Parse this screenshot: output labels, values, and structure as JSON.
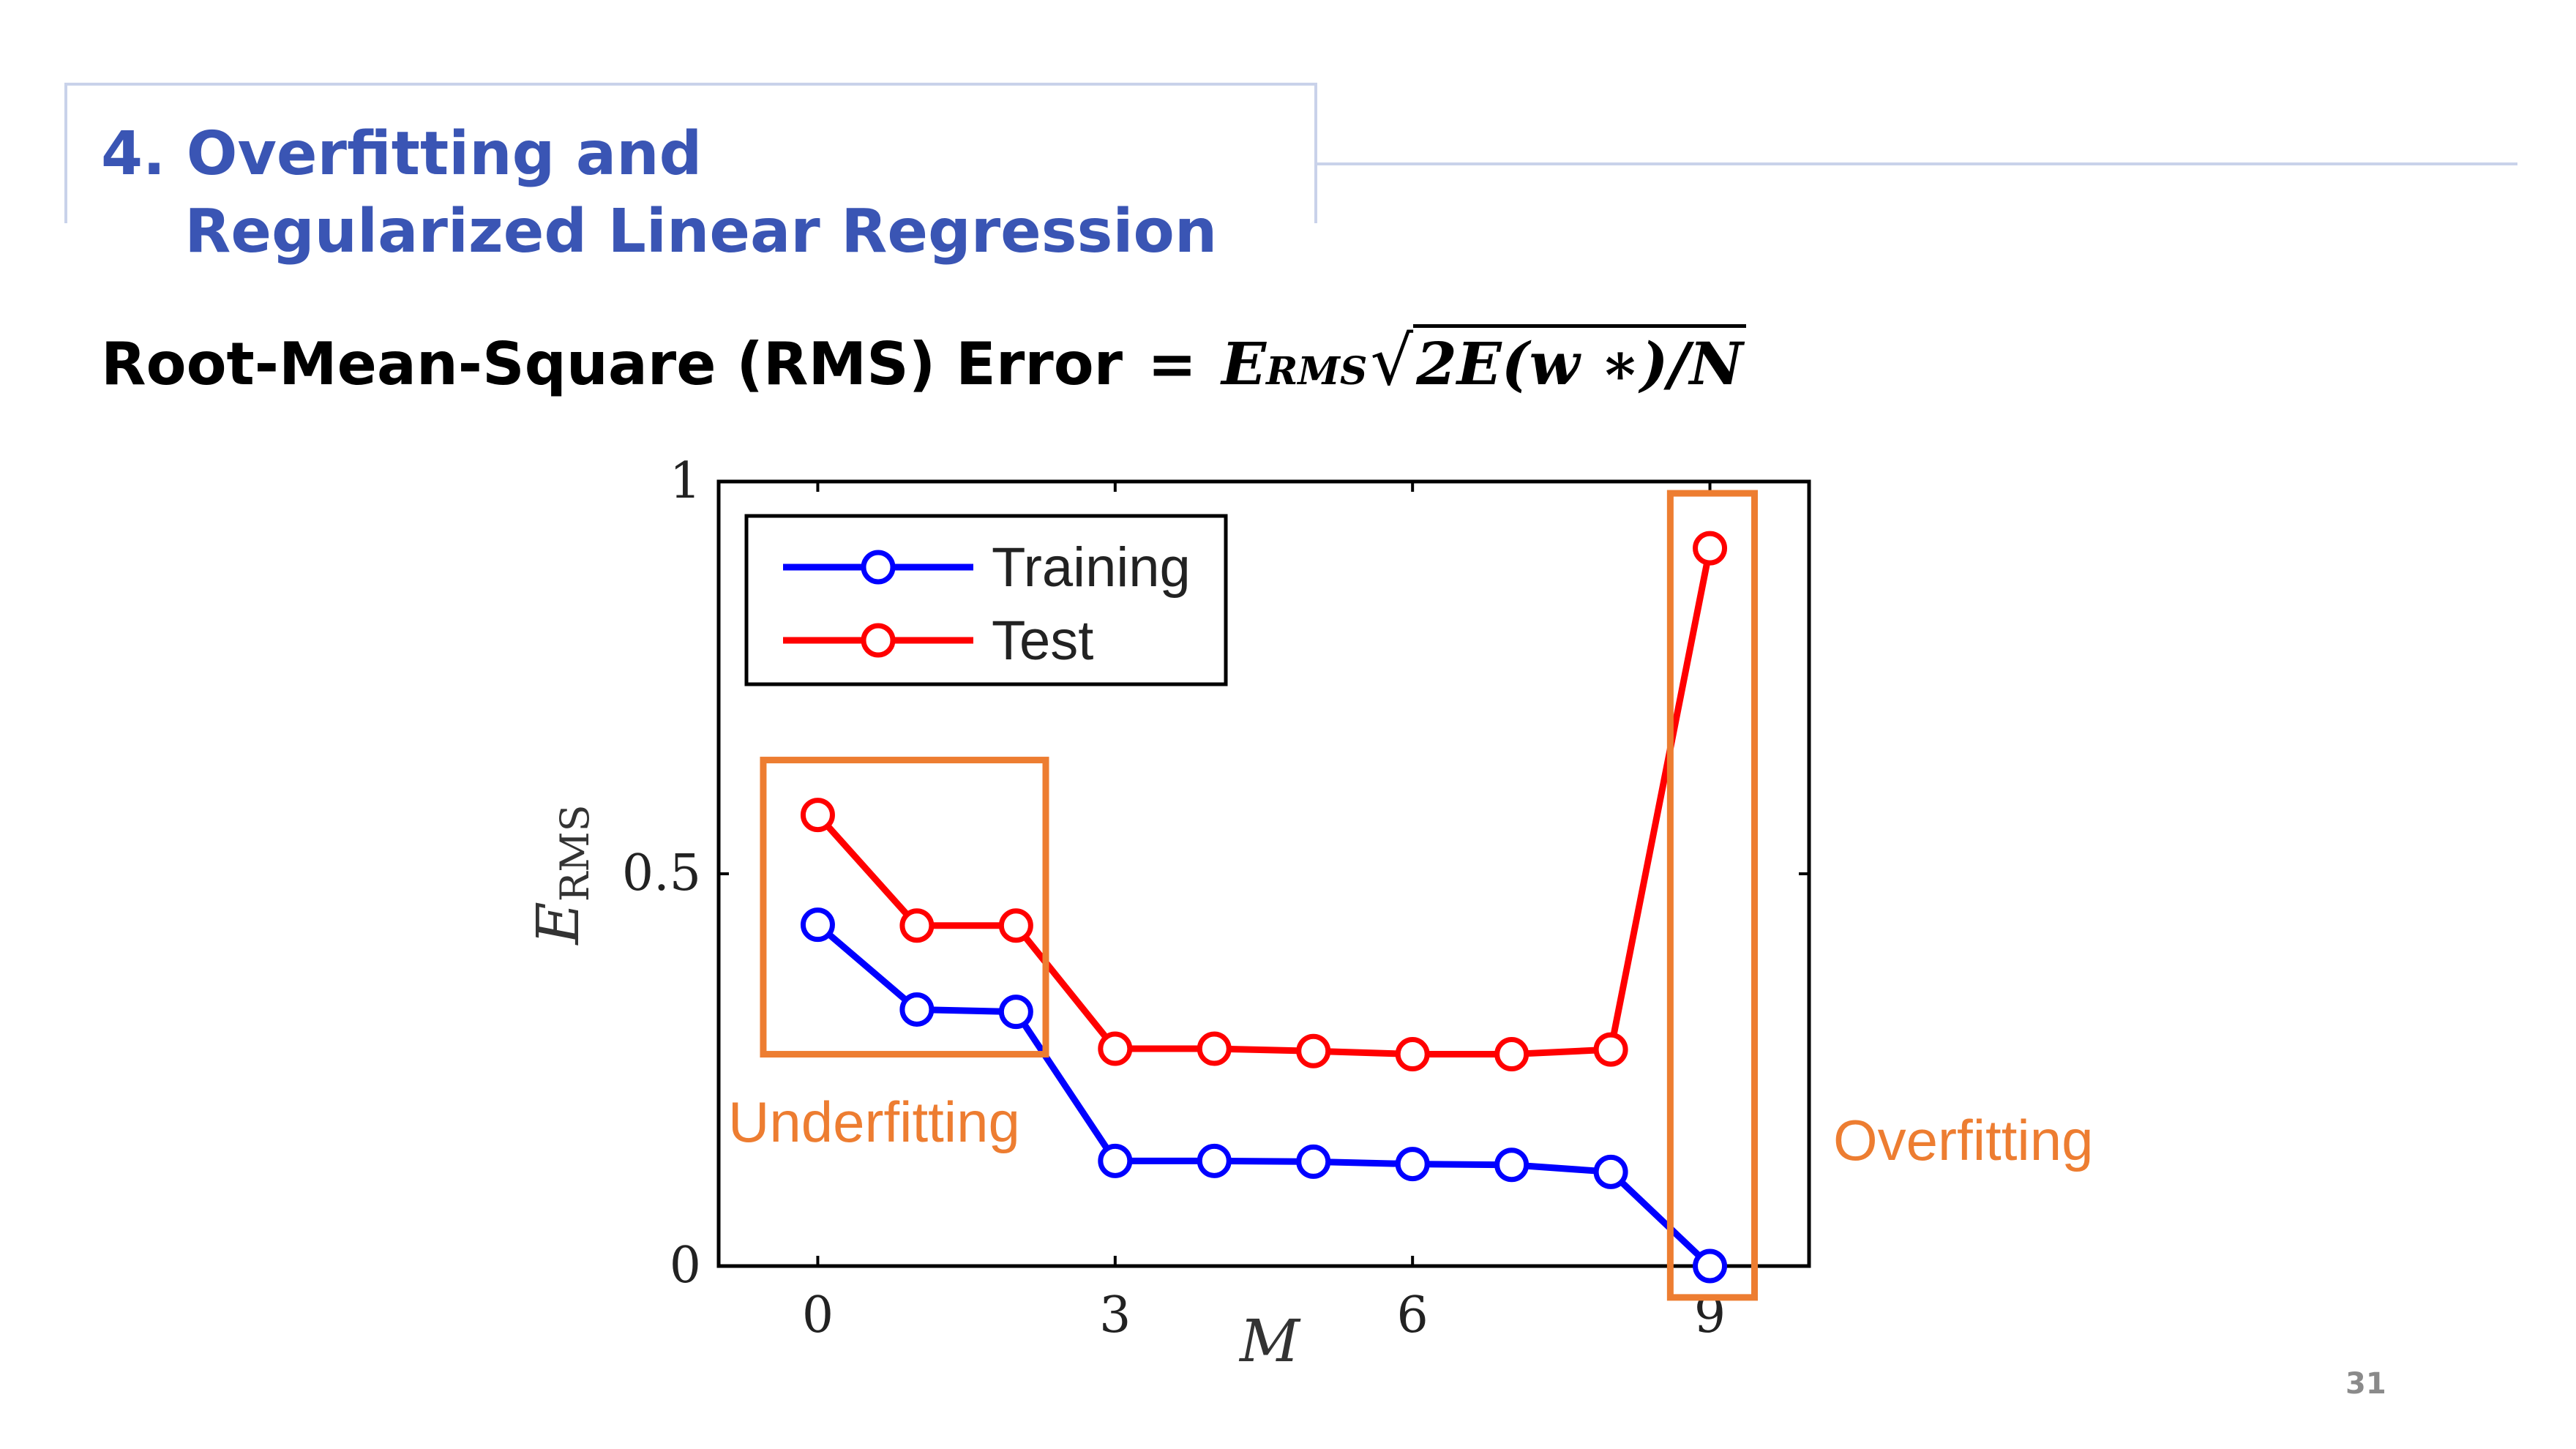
{
  "slide": {
    "title_line1": "4. Overfitting and",
    "title_line2": "    Regularized Linear Regression",
    "formula_label": "Root-Mean-Square (RMS) Error",
    "formula_equals": "=",
    "formula_lhs": "E",
    "formula_lhs_sub": "RMS",
    "formula_root_sign": "√",
    "formula_radicand": "2E(w ∗)/N",
    "page_number": "31"
  },
  "colors": {
    "title": "#3a55b4",
    "frame": "#c9d2ea",
    "training": "#0000ff",
    "test": "#ff0000",
    "annotation": "#ed7d31"
  },
  "chart_data": {
    "type": "line",
    "xlabel": "M",
    "ylabel": "E",
    "ylabel_sub": "RMS",
    "xlim": [
      -1,
      10
    ],
    "ylim": [
      0,
      1
    ],
    "x_ticks": [
      0,
      3,
      6,
      9
    ],
    "x_tick_labels": [
      "0",
      "3",
      "6",
      "9"
    ],
    "y_ticks": [
      0,
      0.5,
      1
    ],
    "y_tick_labels": [
      "0",
      "0.5",
      "1"
    ],
    "legend_position": "top-left",
    "x": [
      0,
      1,
      2,
      3,
      4,
      5,
      6,
      7,
      8,
      9
    ],
    "series": [
      {
        "name": "Training",
        "color": "#0000ff",
        "values": [
          0.435,
          0.327,
          0.324,
          0.134,
          0.134,
          0.133,
          0.13,
          0.129,
          0.12,
          0.0
        ]
      },
      {
        "name": "Test",
        "color": "#ff0000",
        "values": [
          0.575,
          0.434,
          0.434,
          0.277,
          0.277,
          0.274,
          0.27,
          0.27,
          0.276,
          0.915
        ]
      }
    ],
    "annotations": [
      {
        "label": "Underfitting",
        "x_range": [
          -0.55,
          2.3
        ],
        "y_range": [
          0.27,
          0.645
        ]
      },
      {
        "label": "Overfitting",
        "x_range": [
          8.6,
          9.45
        ],
        "y_range": [
          -0.04,
          0.985
        ]
      }
    ]
  }
}
